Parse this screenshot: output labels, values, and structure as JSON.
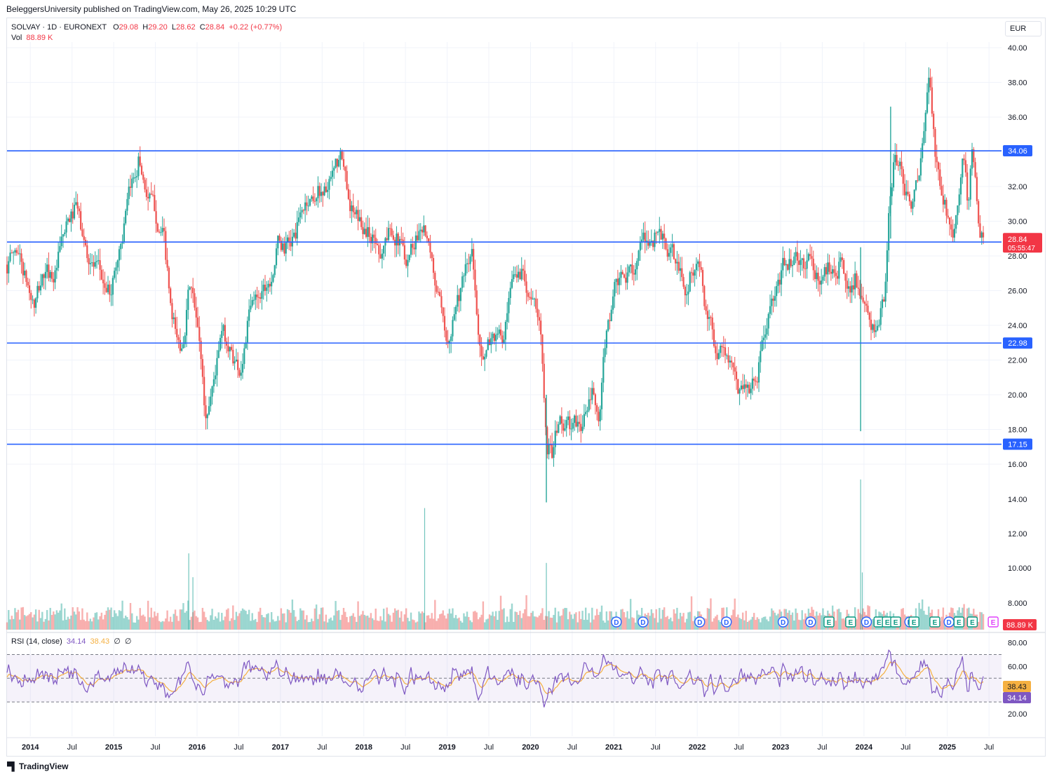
{
  "header": {
    "publisher": "BeleggersUniversity published on TradingView.com, May 26, 2025 10:29 UTC"
  },
  "legend": {
    "symbol": "SOLVAY · 1D · EURONEXT",
    "o_label": "O",
    "o_value": "29.08",
    "h_label": "H",
    "h_value": "29.20",
    "l_label": "L",
    "l_value": "28.62",
    "c_label": "C",
    "c_value": "28.84",
    "change": "+0.22 (+0.77%)",
    "vol_label": "Vol",
    "vol_value": "88.89 K"
  },
  "currency": "EUR",
  "rsi_legend": {
    "label": "RSI (14, close)",
    "rsi_value": "34.14",
    "ma_value": "38.43",
    "extra1": "∅",
    "extra2": "∅"
  },
  "footer": {
    "brand": "TradingView"
  },
  "colors": {
    "up": "#26a69a",
    "down": "#ef5350",
    "level_line": "#2962ff",
    "rsi_line": "#7e57c2",
    "rsi_ma": "#f5b041",
    "price_badge": "#f23645"
  },
  "chart_data": [
    {
      "type": "candlestick",
      "title": "SOLVAY · 1D · EURONEXT",
      "x_range": [
        2013.72,
        2025.65
      ],
      "ylim": [
        13.0,
        41.0
      ],
      "y_ticks": [
        "16.00",
        "18.00",
        "20.00",
        "22.00",
        "24.00",
        "26.00",
        "28.00",
        "30.00",
        "32.00",
        "34.00",
        "36.00",
        "38.00",
        "40.00"
      ],
      "x_ticks": [
        {
          "t": 2014.0,
          "label": "2014"
        },
        {
          "t": 2014.5,
          "label": "Jul"
        },
        {
          "t": 2015.0,
          "label": "2015"
        },
        {
          "t": 2015.5,
          "label": "Jul"
        },
        {
          "t": 2016.0,
          "label": "2016"
        },
        {
          "t": 2016.5,
          "label": "Jul"
        },
        {
          "t": 2017.0,
          "label": "2017"
        },
        {
          "t": 2017.5,
          "label": "Jul"
        },
        {
          "t": 2018.0,
          "label": "2018"
        },
        {
          "t": 2018.5,
          "label": "Jul"
        },
        {
          "t": 2019.0,
          "label": "2019"
        },
        {
          "t": 2019.5,
          "label": "Jul"
        },
        {
          "t": 2020.0,
          "label": "2020"
        },
        {
          "t": 2020.5,
          "label": "Jul"
        },
        {
          "t": 2021.0,
          "label": "2021"
        },
        {
          "t": 2021.5,
          "label": "Jul"
        },
        {
          "t": 2022.0,
          "label": "2022"
        },
        {
          "t": 2022.5,
          "label": "Jul"
        },
        {
          "t": 2023.0,
          "label": "2023"
        },
        {
          "t": 2023.5,
          "label": "Jul"
        },
        {
          "t": 2024.0,
          "label": "2024"
        },
        {
          "t": 2024.5,
          "label": "Jul"
        },
        {
          "t": 2025.0,
          "label": "2025"
        },
        {
          "t": 2025.5,
          "label": "Jul"
        }
      ],
      "price_path": [
        [
          2013.72,
          27.5
        ],
        [
          2013.85,
          28.5
        ],
        [
          2013.95,
          26.5
        ],
        [
          2014.05,
          25.0
        ],
        [
          2014.15,
          26.8
        ],
        [
          2014.3,
          27.0
        ],
        [
          2014.4,
          29.0
        ],
        [
          2014.55,
          30.8
        ],
        [
          2014.65,
          28.5
        ],
        [
          2014.8,
          27.0
        ],
        [
          2014.95,
          25.8
        ],
        [
          2015.05,
          28.0
        ],
        [
          2015.2,
          31.5
        ],
        [
          2015.3,
          33.8
        ],
        [
          2015.38,
          32.0
        ],
        [
          2015.5,
          30.5
        ],
        [
          2015.6,
          29.0
        ],
        [
          2015.7,
          24.0
        ],
        [
          2015.8,
          22.5
        ],
        [
          2015.92,
          26.5
        ],
        [
          2016.05,
          22.0
        ],
        [
          2016.1,
          18.5
        ],
        [
          2016.18,
          20.5
        ],
        [
          2016.3,
          23.5
        ],
        [
          2016.45,
          22.0
        ],
        [
          2016.52,
          21.5
        ],
        [
          2016.62,
          24.5
        ],
        [
          2016.75,
          26.0
        ],
        [
          2016.88,
          27.0
        ],
        [
          2016.98,
          28.8
        ],
        [
          2017.05,
          28.4
        ],
        [
          2017.15,
          28.9
        ],
        [
          2017.3,
          31.0
        ],
        [
          2017.45,
          31.8
        ],
        [
          2017.6,
          32.0
        ],
        [
          2017.72,
          33.5
        ],
        [
          2017.82,
          31.5
        ],
        [
          2017.9,
          30.0
        ],
        [
          2018.05,
          29.5
        ],
        [
          2018.2,
          28.5
        ],
        [
          2018.35,
          29.8
        ],
        [
          2018.5,
          28.0
        ],
        [
          2018.6,
          29.0
        ],
        [
          2018.72,
          30.2
        ],
        [
          2018.8,
          27.5
        ],
        [
          2018.9,
          25.5
        ],
        [
          2018.98,
          22.5
        ],
        [
          2019.1,
          25.5
        ],
        [
          2019.2,
          26.5
        ],
        [
          2019.3,
          28.0
        ],
        [
          2019.36,
          24.0
        ],
        [
          2019.45,
          22.0
        ],
        [
          2019.55,
          23.5
        ],
        [
          2019.68,
          23.0
        ],
        [
          2019.8,
          26.5
        ],
        [
          2019.92,
          27.3
        ],
        [
          2020.05,
          25.0
        ],
        [
          2020.12,
          23.5
        ],
        [
          2020.2,
          17.5
        ],
        [
          2020.26,
          16.8
        ],
        [
          2020.35,
          18.5
        ],
        [
          2020.5,
          18.0
        ],
        [
          2020.62,
          18.3
        ],
        [
          2020.75,
          20.0
        ],
        [
          2020.82,
          18.0
        ],
        [
          2020.9,
          23.0
        ],
        [
          2021.0,
          26.0
        ],
        [
          2021.15,
          26.5
        ],
        [
          2021.28,
          28.0
        ],
        [
          2021.42,
          28.8
        ],
        [
          2021.55,
          29.5
        ],
        [
          2021.65,
          28.2
        ],
        [
          2021.75,
          27.5
        ],
        [
          2021.85,
          26.0
        ],
        [
          2021.95,
          27.5
        ],
        [
          2022.05,
          27.0
        ],
        [
          2022.1,
          24.5
        ],
        [
          2022.2,
          23.0
        ],
        [
          2022.35,
          22.5
        ],
        [
          2022.48,
          20.2
        ],
        [
          2022.55,
          20.8
        ],
        [
          2022.65,
          20.5
        ],
        [
          2022.75,
          22.0
        ],
        [
          2022.85,
          24.5
        ],
        [
          2022.95,
          25.5
        ],
        [
          2023.05,
          27.5
        ],
        [
          2023.15,
          28.0
        ],
        [
          2023.25,
          27.2
        ],
        [
          2023.35,
          27.8
        ],
        [
          2023.45,
          26.5
        ],
        [
          2023.6,
          27.5
        ],
        [
          2023.7,
          27.8
        ],
        [
          2023.8,
          26.0
        ],
        [
          2023.9,
          27.0
        ],
        [
          2023.96,
          25.0
        ],
        [
          2024.0,
          24.5
        ],
        [
          2024.08,
          24.0
        ],
        [
          2024.15,
          23.5
        ],
        [
          2024.25,
          25.5
        ],
        [
          2024.3,
          30.0
        ],
        [
          2024.36,
          33.5
        ],
        [
          2024.45,
          33.0
        ],
        [
          2024.55,
          31.0
        ],
        [
          2024.65,
          32.0
        ],
        [
          2024.72,
          34.5
        ],
        [
          2024.78,
          38.5
        ],
        [
          2024.85,
          34.0
        ],
        [
          2024.92,
          31.5
        ],
        [
          2025.0,
          30.5
        ],
        [
          2025.08,
          29.8
        ],
        [
          2025.15,
          31.5
        ],
        [
          2025.2,
          33.5
        ],
        [
          2025.25,
          30.5
        ],
        [
          2025.3,
          34.0
        ],
        [
          2025.35,
          31.0
        ],
        [
          2025.4,
          29.2
        ],
        [
          2025.45,
          28.84
        ]
      ],
      "spikes": [
        {
          "t": 2023.96,
          "low": 17.9,
          "high": 28.5
        },
        {
          "t": 2020.19,
          "low": 13.8,
          "high": 20.0
        },
        {
          "t": 2024.32,
          "low": 29.0,
          "high": 36.6
        }
      ],
      "levels": [
        {
          "value": 34.06,
          "label": "34.06"
        },
        {
          "value": 28.8,
          "label": "28.80"
        },
        {
          "value": 22.98,
          "label": "22.98"
        },
        {
          "value": 17.15,
          "label": "17.15"
        }
      ],
      "last_price": {
        "value": 28.84,
        "label": "28.84",
        "countdown": "05:55:47"
      }
    },
    {
      "type": "bar",
      "title": "Vol",
      "y_ticks": [
        "8.000",
        "10.000",
        "12.00",
        "14.00"
      ],
      "last_value_label": "88.89 K",
      "volume_spikes": [
        {
          "t": 2015.9,
          "rel": 0.32
        },
        {
          "t": 2015.95,
          "rel": 0.22
        },
        {
          "t": 2018.73,
          "rel": 0.51
        },
        {
          "t": 2020.19,
          "rel": 0.28
        },
        {
          "t": 2023.96,
          "rel": 0.63
        },
        {
          "t": 2023.98,
          "rel": 0.24
        }
      ],
      "event_markers": [
        {
          "t": 2021.03,
          "label": "D"
        },
        {
          "t": 2021.35,
          "label": "D"
        },
        {
          "t": 2022.03,
          "label": "D"
        },
        {
          "t": 2022.35,
          "label": "D"
        },
        {
          "t": 2023.03,
          "label": "D"
        },
        {
          "t": 2023.36,
          "label": "D"
        },
        {
          "t": 2023.58,
          "label": "E"
        },
        {
          "t": 2023.84,
          "label": "E"
        },
        {
          "t": 2024.03,
          "label": "D"
        },
        {
          "t": 2024.18,
          "label": "E"
        },
        {
          "t": 2024.28,
          "label": "E"
        },
        {
          "t": 2024.38,
          "label": "E"
        },
        {
          "t": 2024.55,
          "label": "D"
        },
        {
          "t": 2024.6,
          "label": "E"
        },
        {
          "t": 2024.85,
          "label": "E"
        },
        {
          "t": 2025.02,
          "label": "D"
        },
        {
          "t": 2025.14,
          "label": "E"
        },
        {
          "t": 2025.3,
          "label": "E"
        },
        {
          "t": 2025.55,
          "label": "E"
        }
      ]
    },
    {
      "type": "line",
      "title": "RSI (14, close)",
      "ylim": [
        10,
        85
      ],
      "y_ticks": [
        "20.00",
        "60.00",
        "80.00"
      ],
      "bands": [
        30,
        50,
        70
      ],
      "series": [
        {
          "name": "RSI",
          "last_label": "34.14"
        },
        {
          "name": "RSI MA",
          "last_label": "38.43"
        }
      ]
    }
  ]
}
